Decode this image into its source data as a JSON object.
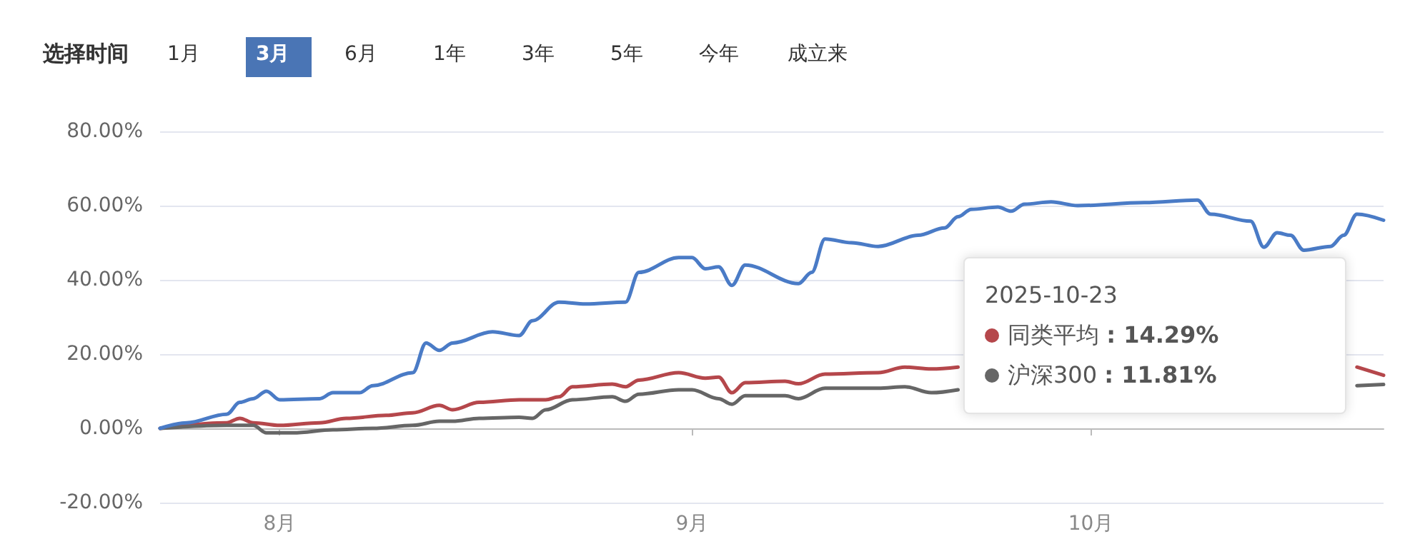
{
  "chart_data": {
    "type": "line",
    "title": "选择时间",
    "annotations": [
      "1月",
      "3月",
      "6月",
      "1年",
      "3年",
      "5年",
      "今年",
      "成立来",
      "2025-10-23",
      ": 14.29%",
      ": 11.81%"
    ],
    "legend": "right",
    "xlim": [
      "2025-07-23",
      "2025-10-23"
    ],
    "xticks": [
      {
        "value": "2025-08-01",
        "label": "8月"
      },
      {
        "value": "2025-09-01",
        "label": "9月"
      },
      {
        "value": "2025-10-01",
        "label": "10月"
      }
    ],
    "ylim": [
      -20,
      80
    ],
    "yticks": [
      {
        "value": -20,
        "label": "-20.00%"
      },
      {
        "value": 0,
        "label": "0.00%"
      },
      {
        "value": 20,
        "label": "20.00%"
      },
      {
        "value": 40,
        "label": "40.00%"
      },
      {
        "value": 60,
        "label": "60.00%"
      },
      {
        "value": 80,
        "label": "80.00%"
      }
    ],
    "grid": "y",
    "marker": "none",
    "line_style": "solid",
    "series": [
      {
        "name": "同类平均",
        "color": "#b5474b",
        "x": [
          "2025-07-23",
          "2025-07-28",
          "2025-07-29",
          "2025-07-30",
          "2025-08-01",
          "2025-08-04",
          "2025-08-06",
          "2025-08-09",
          "2025-08-11",
          "2025-08-13",
          "2025-08-14",
          "2025-08-16",
          "2025-08-19",
          "2025-08-21",
          "2025-08-22",
          "2025-08-23",
          "2025-08-26",
          "2025-08-27",
          "2025-08-28",
          "2025-08-31",
          "2025-09-02",
          "2025-09-03",
          "2025-09-04",
          "2025-09-05",
          "2025-09-08",
          "2025-09-09",
          "2025-09-11",
          "2025-09-15",
          "2025-09-17",
          "2025-09-19",
          "2025-09-21",
          "2025-09-23",
          "2025-10-21",
          "2025-10-23"
        ],
        "values": [
          0,
          1.5,
          2.7,
          1.5,
          0.8,
          1.5,
          2.7,
          3.5,
          4.2,
          6.2,
          5,
          7,
          7.7,
          7.7,
          8.5,
          11.2,
          11.9,
          11.2,
          13,
          15,
          13.5,
          13.8,
          9.6,
          12.3,
          12.7,
          12,
          14.6,
          15,
          16.5,
          16,
          16.5,
          null,
          16.5,
          14.29
        ]
      },
      {
        "name": "沪深300",
        "color": "#666666",
        "x": [
          "2025-07-23",
          "2025-07-28",
          "2025-07-30",
          "2025-07-31",
          "2025-08-02",
          "2025-08-05",
          "2025-08-08",
          "2025-08-11",
          "2025-08-13",
          "2025-08-14",
          "2025-08-16",
          "2025-08-19",
          "2025-08-20",
          "2025-08-21",
          "2025-08-23",
          "2025-08-26",
          "2025-08-27",
          "2025-08-28",
          "2025-08-31",
          "2025-09-01",
          "2025-09-03",
          "2025-09-04",
          "2025-09-05",
          "2025-09-08",
          "2025-09-09",
          "2025-09-11",
          "2025-09-15",
          "2025-09-17",
          "2025-09-19",
          "2025-09-21",
          "2025-09-23",
          "2025-10-21",
          "2025-10-23"
        ],
        "values": [
          0,
          0.8,
          0.8,
          -1.2,
          -1.2,
          -0.4,
          0,
          0.8,
          1.9,
          1.9,
          2.7,
          3,
          2.7,
          5,
          7.7,
          8.5,
          7.3,
          9.2,
          10.4,
          10.4,
          8,
          6.5,
          8.8,
          8.8,
          8,
          10.8,
          10.8,
          11.2,
          9.6,
          10.4,
          null,
          11.5,
          11.81
        ]
      },
      {
        "color": "#4a7bc6",
        "x": [
          "2025-07-23",
          "2025-07-25",
          "2025-07-28",
          "2025-07-29",
          "2025-07-30",
          "2025-07-31",
          "2025-08-01",
          "2025-08-04",
          "2025-08-05",
          "2025-08-07",
          "2025-08-08",
          "2025-08-11",
          "2025-08-12",
          "2025-08-13",
          "2025-08-14",
          "2025-08-17",
          "2025-08-19",
          "2025-08-20",
          "2025-08-22",
          "2025-08-24",
          "2025-08-27",
          "2025-08-28",
          "2025-08-31",
          "2025-09-01",
          "2025-09-02",
          "2025-09-03",
          "2025-09-04",
          "2025-09-05",
          "2025-09-09",
          "2025-09-10",
          "2025-09-11",
          "2025-09-13",
          "2025-09-15",
          "2025-09-18",
          "2025-09-20",
          "2025-09-21",
          "2025-09-22",
          "2025-09-24",
          "2025-09-25",
          "2025-09-26",
          "2025-09-28",
          "2025-09-30",
          "2025-10-05",
          "2025-10-09",
          "2025-10-10",
          "2025-10-13",
          "2025-10-14",
          "2025-10-15",
          "2025-10-16",
          "2025-10-17",
          "2025-10-19",
          "2025-10-20",
          "2025-10-21",
          "2025-10-23"
        ],
        "values": [
          0,
          1.5,
          3.8,
          7,
          8,
          10,
          7.7,
          8,
          9.6,
          9.6,
          11.5,
          15,
          23,
          21,
          23,
          26,
          25,
          29,
          34,
          33.5,
          34,
          42,
          46,
          46,
          43,
          43.5,
          38.5,
          44,
          39,
          42,
          51,
          50,
          49,
          52,
          54,
          57,
          59,
          59.6,
          58.5,
          60.4,
          61,
          60,
          60.8,
          61.5,
          57.7,
          55.8,
          48.8,
          52.7,
          52,
          48,
          49,
          52,
          57.7,
          56.06
        ]
      }
    ]
  }
}
